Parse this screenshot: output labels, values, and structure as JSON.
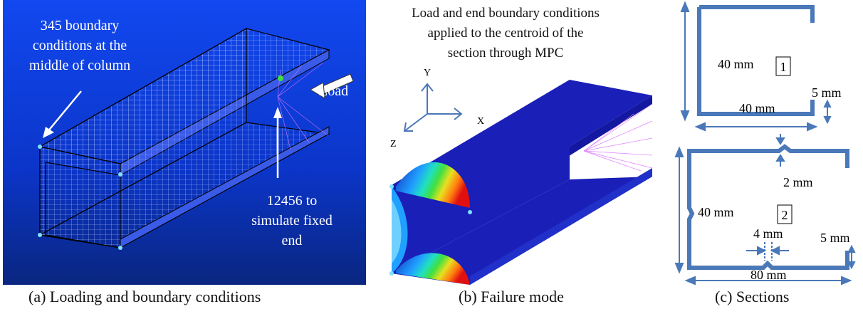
{
  "panel_a": {
    "bc_text_line1": "345 boundary",
    "bc_text_line2": "conditions at the",
    "bc_text_line3": "middle of column",
    "load_label": "Load",
    "fixed_line1": "12456 to",
    "fixed_line2": "simulate fixed",
    "fixed_line3": "end",
    "caption": "(a) Loading and boundary conditions",
    "bg_top": "#0a3fe0",
    "bg_bottom": "#0a2a90"
  },
  "panel_b": {
    "title_line1": "Load and end boundary conditions",
    "title_line2": "applied to the centroid of the",
    "title_line3": "section through MPC",
    "axis_y": "Y",
    "axis_x": "X",
    "axis_z": "Z",
    "caption": "(b) Failure mode"
  },
  "panel_c": {
    "s1_height": "40 mm",
    "s1_width": "40 mm",
    "s1_lip": "5 mm",
    "s1_id": "1",
    "s2_gap": "2 mm",
    "s2_height": "40 mm",
    "s2_id": "2",
    "s2_notch": "4 mm",
    "s2_lip": "5 mm",
    "s2_width": "80 mm",
    "caption": "(c) Sections",
    "line_color": "#4a78b8"
  }
}
